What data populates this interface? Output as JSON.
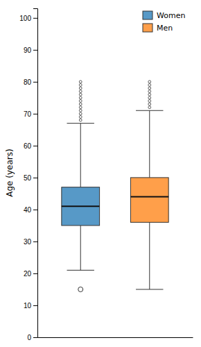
{
  "chart_data": {
    "type": "box",
    "ylabel": "Age (years)",
    "series": [
      {
        "name": "Women",
        "q1": 35,
        "median": 41,
        "q3": 47,
        "whisker_low": 21,
        "whisker_high": 67,
        "outliers_low": [
          15
        ],
        "outliers_high": [
          68,
          69,
          70,
          71,
          72,
          73,
          74,
          75,
          76,
          77,
          78,
          79,
          80
        ]
      },
      {
        "name": "Men",
        "q1": 36,
        "median": 44,
        "q3": 50,
        "whisker_low": 15,
        "whisker_high": 71,
        "outliers_low": [],
        "outliers_high": [
          72,
          73,
          74,
          75,
          76,
          77,
          78,
          79,
          80
        ]
      }
    ],
    "ylim": [
      0,
      103
    ],
    "yticks": [
      0,
      10,
      20,
      30,
      40,
      50,
      60,
      70,
      80,
      90,
      100
    ],
    "grid": false,
    "legend": "upper right",
    "tick_labels": "y"
  }
}
